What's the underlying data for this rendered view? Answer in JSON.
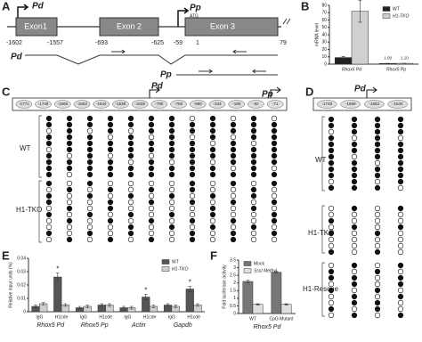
{
  "panels": {
    "A": {
      "label": "A",
      "promoters": [
        "Pd",
        "Pp"
      ],
      "atg": "ATG",
      "exons": [
        "Exon1",
        "Exon 2",
        "Exon 3"
      ],
      "positions": [
        "-1602",
        "-1557",
        "-693",
        "-625",
        "-59",
        "1",
        "79"
      ],
      "transcripts": [
        "Pd",
        "Pp"
      ]
    },
    "B": {
      "label": "B",
      "chart_data": {
        "type": "bar",
        "y_label": "mRNA level",
        "categories": [
          "Rhox5 Pd",
          "Rhox5 Pp"
        ],
        "series": [
          {
            "name": "WT",
            "color": "#222222",
            "values": [
              9,
              1.0
            ],
            "errors": [
              1.5,
              0.1
            ],
            "value_labels": [
              null,
              "1.00"
            ]
          },
          {
            "name": "H1-TKO",
            "color": "#d0d0d0",
            "values": [
              72,
              1.1
            ],
            "errors": [
              15,
              0.1
            ],
            "value_labels": [
              null,
              "1.10"
            ]
          }
        ],
        "ylim": [
          0,
          80
        ],
        "yticks": [
          0,
          10,
          20,
          30,
          40,
          50,
          60,
          70,
          80
        ],
        "legend": "upper right"
      }
    },
    "C": {
      "label": "C",
      "promoters": [
        "Pd",
        "Pp"
      ],
      "sites": [
        "-1771",
        "-1749",
        "-1669",
        "-1653",
        "-1644",
        "-1538",
        "-1528",
        "-780",
        "-760",
        "-690",
        "-343",
        "-180",
        "-92",
        "-71"
      ],
      "groups": [
        "WT",
        "H1-TKO"
      ]
    },
    "D": {
      "label": "D",
      "promoters": [
        "Pd"
      ],
      "sites": [
        "-1749",
        "-1669",
        "-1653",
        "-1644"
      ],
      "groups": [
        "WT",
        "H1-TKO",
        "H1-Rescue"
      ]
    },
    "E": {
      "label": "E",
      "chart_data": {
        "type": "bar",
        "y_label": "Relative input units (%)",
        "categories": [
          "IgG",
          "H1cde",
          "IgG",
          "H1cde",
          "IgG",
          "H1cde",
          "IgG",
          "H1cde"
        ],
        "groups": [
          "Rhox5 Pd",
          "Rhox5 Pp",
          "Actin",
          "Gapdh"
        ],
        "series": [
          {
            "name": "WT",
            "color": "#555555",
            "values": [
              0.004,
              0.026,
              0.003,
              0.005,
              0.003,
              0.011,
              0.005,
              0.017
            ],
            "errors": [
              0.001,
              0.003,
              0.001,
              0.001,
              0.001,
              0.002,
              0.001,
              0.002
            ]
          },
          {
            "name": "H1-TKO",
            "color": "#d0d0d0",
            "values": [
              0.006,
              0.005,
              0.004,
              0.005,
              0.003,
              0.004,
              0.004,
              0.005
            ],
            "errors": [
              0.001,
              0.001,
              0.001,
              0.001,
              0.001,
              0.001,
              0.001,
              0.001
            ]
          }
        ],
        "annotations": [
          "*",
          "*",
          "*"
        ],
        "ylim": [
          0,
          0.04
        ],
        "yticks": [
          0,
          0.01,
          0.02,
          0.03,
          0.04
        ],
        "legend": "upper right"
      }
    },
    "F": {
      "label": "F",
      "chart_data": {
        "type": "bar",
        "y_label": "Fold luciferase activity",
        "categories": [
          "WT",
          "CpG Mutant"
        ],
        "groups": [
          "Rhox5 Pd"
        ],
        "series": [
          {
            "name": "Mock",
            "color": "#777777",
            "values": [
              2.1,
              2.7
            ],
            "errors": [
              0.08,
              0.05
            ]
          },
          {
            "name": "SssI Methyl",
            "color": "#e0e0e0",
            "values": [
              0.6,
              0.6
            ],
            "errors": [
              0.04,
              0.04
            ]
          }
        ],
        "ylim": [
          0,
          3.5
        ],
        "yticks": [
          0,
          0.5,
          1,
          1.5,
          2,
          2.5,
          3,
          3.5
        ],
        "legend": "upper left"
      }
    }
  }
}
